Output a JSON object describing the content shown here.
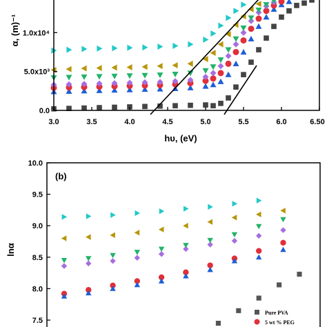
{
  "chart_data": [
    {
      "type": "scatter",
      "xlabel": "hυ, (eV)",
      "ylabel": "α, (m)⁻¹",
      "xlim": [
        3.0,
        6.5
      ],
      "ylim": [
        0,
        15000
      ],
      "xticks": [
        "3.0",
        "3.5",
        "4.0",
        "4.5",
        "5.0",
        "5.5",
        "6.0",
        "6.50"
      ],
      "yticks": [
        {
          "value": 0,
          "label": "0.0"
        },
        {
          "value": 5000,
          "label": "5.0x10³"
        },
        {
          "value": 10000,
          "label": "1.0x10⁴"
        }
      ],
      "series": [
        {
          "marker": "square",
          "color": "#444444",
          "points": [
            [
              3.0,
              200
            ],
            [
              3.2,
              250
            ],
            [
              3.4,
              300
            ],
            [
              3.6,
              350
            ],
            [
              3.8,
              400
            ],
            [
              4.0,
              450
            ],
            [
              4.2,
              500
            ],
            [
              4.4,
              550
            ],
            [
              4.6,
              600
            ],
            [
              4.8,
              650
            ],
            [
              5.0,
              700
            ],
            [
              5.1,
              600
            ],
            [
              5.2,
              900
            ],
            [
              5.3,
              1600
            ],
            [
              5.4,
              3000
            ],
            [
              5.5,
              4600
            ],
            [
              5.6,
              6200
            ],
            [
              5.7,
              7800
            ],
            [
              5.8,
              9300
            ],
            [
              5.9,
              10800
            ],
            [
              6.0,
              12000
            ],
            [
              6.1,
              12800
            ],
            [
              6.2,
              13500
            ],
            [
              6.3,
              13800
            ],
            [
              6.4,
              14200
            ]
          ]
        },
        {
          "marker": "triangle-up",
          "color": "#1f5fd6",
          "points": [
            [
              3.0,
              2400
            ],
            [
              3.2,
              2450
            ],
            [
              3.4,
              2500
            ],
            [
              3.6,
              2550
            ],
            [
              3.8,
              2600
            ],
            [
              4.0,
              2650
            ],
            [
              4.2,
              2700
            ],
            [
              4.4,
              2750
            ],
            [
              4.6,
              2800
            ],
            [
              4.8,
              2900
            ],
            [
              5.0,
              3100
            ],
            [
              5.1,
              3300
            ],
            [
              5.2,
              3700
            ],
            [
              5.3,
              4600
            ],
            [
              5.4,
              6000
            ],
            [
              5.5,
              7500
            ],
            [
              5.6,
              9200
            ],
            [
              5.7,
              10800
            ],
            [
              5.8,
              12000
            ],
            [
              5.9,
              13000
            ],
            [
              6.0,
              13600
            ],
            [
              6.1,
              14000
            ],
            [
              6.2,
              14300
            ],
            [
              6.3,
              14500
            ]
          ]
        },
        {
          "marker": "circle",
          "color": "#e0303a",
          "points": [
            [
              3.0,
              2900
            ],
            [
              3.2,
              2950
            ],
            [
              3.4,
              3000
            ],
            [
              3.6,
              3050
            ],
            [
              3.8,
              3100
            ],
            [
              4.0,
              3150
            ],
            [
              4.2,
              3200
            ],
            [
              4.4,
              3250
            ],
            [
              4.6,
              3350
            ],
            [
              4.8,
              3500
            ],
            [
              5.0,
              3800
            ],
            [
              5.1,
              4100
            ],
            [
              5.2,
              4800
            ],
            [
              5.3,
              6000
            ],
            [
              5.4,
              7500
            ],
            [
              5.5,
              9000
            ],
            [
              5.6,
              10500
            ],
            [
              5.7,
              11800
            ],
            [
              5.8,
              12800
            ],
            [
              5.9,
              13500
            ],
            [
              6.0,
              14000
            ],
            [
              6.1,
              14300
            ],
            [
              6.2,
              14600
            ]
          ]
        },
        {
          "marker": "diamond",
          "color": "#a66ee0",
          "points": [
            [
              3.0,
              3300
            ],
            [
              3.2,
              3350
            ],
            [
              3.4,
              3400
            ],
            [
              3.6,
              3450
            ],
            [
              3.8,
              3500
            ],
            [
              4.0,
              3550
            ],
            [
              4.2,
              3600
            ],
            [
              4.4,
              3650
            ],
            [
              4.6,
              3750
            ],
            [
              4.8,
              3900
            ],
            [
              5.0,
              4300
            ],
            [
              5.1,
              4800
            ],
            [
              5.2,
              5700
            ],
            [
              5.3,
              7000
            ],
            [
              5.4,
              8500
            ],
            [
              5.5,
              10000
            ],
            [
              5.6,
              11500
            ],
            [
              5.7,
              12600
            ],
            [
              5.8,
              13400
            ],
            [
              5.9,
              13900
            ],
            [
              6.0,
              14300
            ],
            [
              6.1,
              14600
            ]
          ]
        },
        {
          "marker": "triangle-down",
          "color": "#22b36a",
          "points": [
            [
              3.0,
              4200
            ],
            [
              3.2,
              4250
            ],
            [
              3.4,
              4300
            ],
            [
              3.6,
              4350
            ],
            [
              3.8,
              4400
            ],
            [
              4.0,
              4450
            ],
            [
              4.2,
              4500
            ],
            [
              4.4,
              4550
            ],
            [
              4.6,
              4650
            ],
            [
              4.8,
              4800
            ],
            [
              5.0,
              5100
            ],
            [
              5.1,
              5600
            ],
            [
              5.2,
              6500
            ],
            [
              5.3,
              7800
            ],
            [
              5.4,
              9200
            ],
            [
              5.5,
              10600
            ],
            [
              5.6,
              11900
            ],
            [
              5.7,
              12900
            ],
            [
              5.8,
              13600
            ],
            [
              5.9,
              14100
            ],
            [
              6.0,
              14500
            ]
          ]
        },
        {
          "marker": "triangle-left",
          "color": "#b8960a",
          "points": [
            [
              3.0,
              5200
            ],
            [
              3.2,
              5300
            ],
            [
              3.4,
              5400
            ],
            [
              3.6,
              5450
            ],
            [
              3.8,
              5500
            ],
            [
              4.0,
              5550
            ],
            [
              4.2,
              5600
            ],
            [
              4.4,
              5700
            ],
            [
              4.6,
              5800
            ],
            [
              4.8,
              6000
            ],
            [
              5.0,
              6600
            ],
            [
              5.1,
              7400
            ],
            [
              5.2,
              8500
            ],
            [
              5.3,
              9800
            ],
            [
              5.4,
              11000
            ],
            [
              5.5,
              12100
            ],
            [
              5.6,
              13000
            ],
            [
              5.7,
              13700
            ],
            [
              5.8,
              14300
            ],
            [
              5.9,
              14700
            ]
          ]
        },
        {
          "marker": "triangle-right",
          "color": "#22c8c8",
          "points": [
            [
              3.0,
              7700
            ],
            [
              3.2,
              7800
            ],
            [
              3.4,
              7900
            ],
            [
              3.6,
              7950
            ],
            [
              3.8,
              8000
            ],
            [
              4.0,
              8050
            ],
            [
              4.2,
              8100
            ],
            [
              4.4,
              8200
            ],
            [
              4.6,
              8300
            ],
            [
              4.8,
              8500
            ],
            [
              5.0,
              9100
            ],
            [
              5.1,
              9900
            ],
            [
              5.2,
              10900
            ],
            [
              5.3,
              11900
            ],
            [
              5.4,
              12800
            ],
            [
              5.5,
              13600
            ],
            [
              5.6,
              14300
            ]
          ]
        }
      ]
    },
    {
      "type": "scatter",
      "panel_label": "(b)",
      "ylabel": "lnα",
      "ylim": [
        7.3,
        10.0
      ],
      "yticks": [
        "7.5",
        "8.0",
        "8.5",
        "9.0",
        "9.5",
        "10.0"
      ],
      "legend": [
        "Pure PVA",
        "5  wt % PEG"
      ],
      "legend_position": "bottom-right",
      "series": [
        {
          "name": "Pure PVA",
          "marker": "square",
          "color": "#555555",
          "points": [
            [
              4.9,
              7.45
            ],
            [
              5.15,
              7.65
            ],
            [
              5.4,
              7.85
            ],
            [
              5.65,
              8.06
            ],
            [
              5.9,
              8.23
            ]
          ]
        },
        {
          "name": "5  wt % PEG",
          "marker": "circle",
          "color": "#e0303a",
          "points": [
            [
              3.0,
              7.92
            ],
            [
              3.3,
              7.98
            ],
            [
              3.6,
              8.05
            ],
            [
              3.9,
              8.12
            ],
            [
              4.2,
              8.18
            ],
            [
              4.5,
              8.26
            ],
            [
              4.8,
              8.37
            ],
            [
              5.1,
              8.48
            ],
            [
              5.4,
              8.6
            ],
            [
              5.7,
              8.73
            ]
          ]
        },
        {
          "marker": "triangle-up",
          "color": "#1f5fd6",
          "points": [
            [
              3.0,
              7.88
            ],
            [
              3.3,
              7.93
            ],
            [
              3.6,
              8.0
            ],
            [
              3.9,
              8.06
            ],
            [
              4.2,
              8.12
            ],
            [
              4.5,
              8.2
            ],
            [
              4.8,
              8.3
            ],
            [
              5.1,
              8.44
            ],
            [
              5.4,
              8.5
            ],
            [
              5.7,
              8.62
            ]
          ]
        },
        {
          "marker": "diamond",
          "color": "#a66ee0",
          "points": [
            [
              3.0,
              8.36
            ],
            [
              3.3,
              8.4
            ],
            [
              3.6,
              8.44
            ],
            [
              3.9,
              8.49
            ],
            [
              4.2,
              8.55
            ],
            [
              4.5,
              8.63
            ],
            [
              4.8,
              8.7
            ],
            [
              5.1,
              8.76
            ],
            [
              5.4,
              8.84
            ],
            [
              5.7,
              8.93
            ]
          ]
        },
        {
          "marker": "triangle-down",
          "color": "#22b36a",
          "points": [
            [
              3.0,
              8.45
            ],
            [
              3.3,
              8.48
            ],
            [
              3.6,
              8.53
            ],
            [
              3.9,
              8.58
            ],
            [
              4.2,
              8.63
            ],
            [
              4.5,
              8.69
            ],
            [
              4.8,
              8.77
            ],
            [
              5.1,
              8.86
            ],
            [
              5.4,
              8.99
            ],
            [
              5.7,
              9.1
            ]
          ]
        },
        {
          "marker": "triangle-left",
          "color": "#b8960a",
          "points": [
            [
              3.0,
              8.8
            ],
            [
              3.3,
              8.82
            ],
            [
              3.6,
              8.85
            ],
            [
              3.9,
              8.89
            ],
            [
              4.2,
              8.94
            ],
            [
              4.5,
              9.0
            ],
            [
              4.8,
              9.06
            ],
            [
              5.1,
              9.13
            ],
            [
              5.4,
              9.18
            ],
            [
              5.7,
              9.24
            ]
          ]
        },
        {
          "marker": "triangle-right",
          "color": "#22c8c8",
          "points": [
            [
              3.0,
              9.14
            ],
            [
              3.3,
              9.15
            ],
            [
              3.6,
              9.17
            ],
            [
              3.9,
              9.2
            ],
            [
              4.2,
              9.23
            ],
            [
              4.5,
              9.27
            ],
            [
              4.8,
              9.3
            ],
            [
              5.1,
              9.35
            ],
            [
              5.4,
              9.4
            ]
          ]
        }
      ]
    }
  ]
}
